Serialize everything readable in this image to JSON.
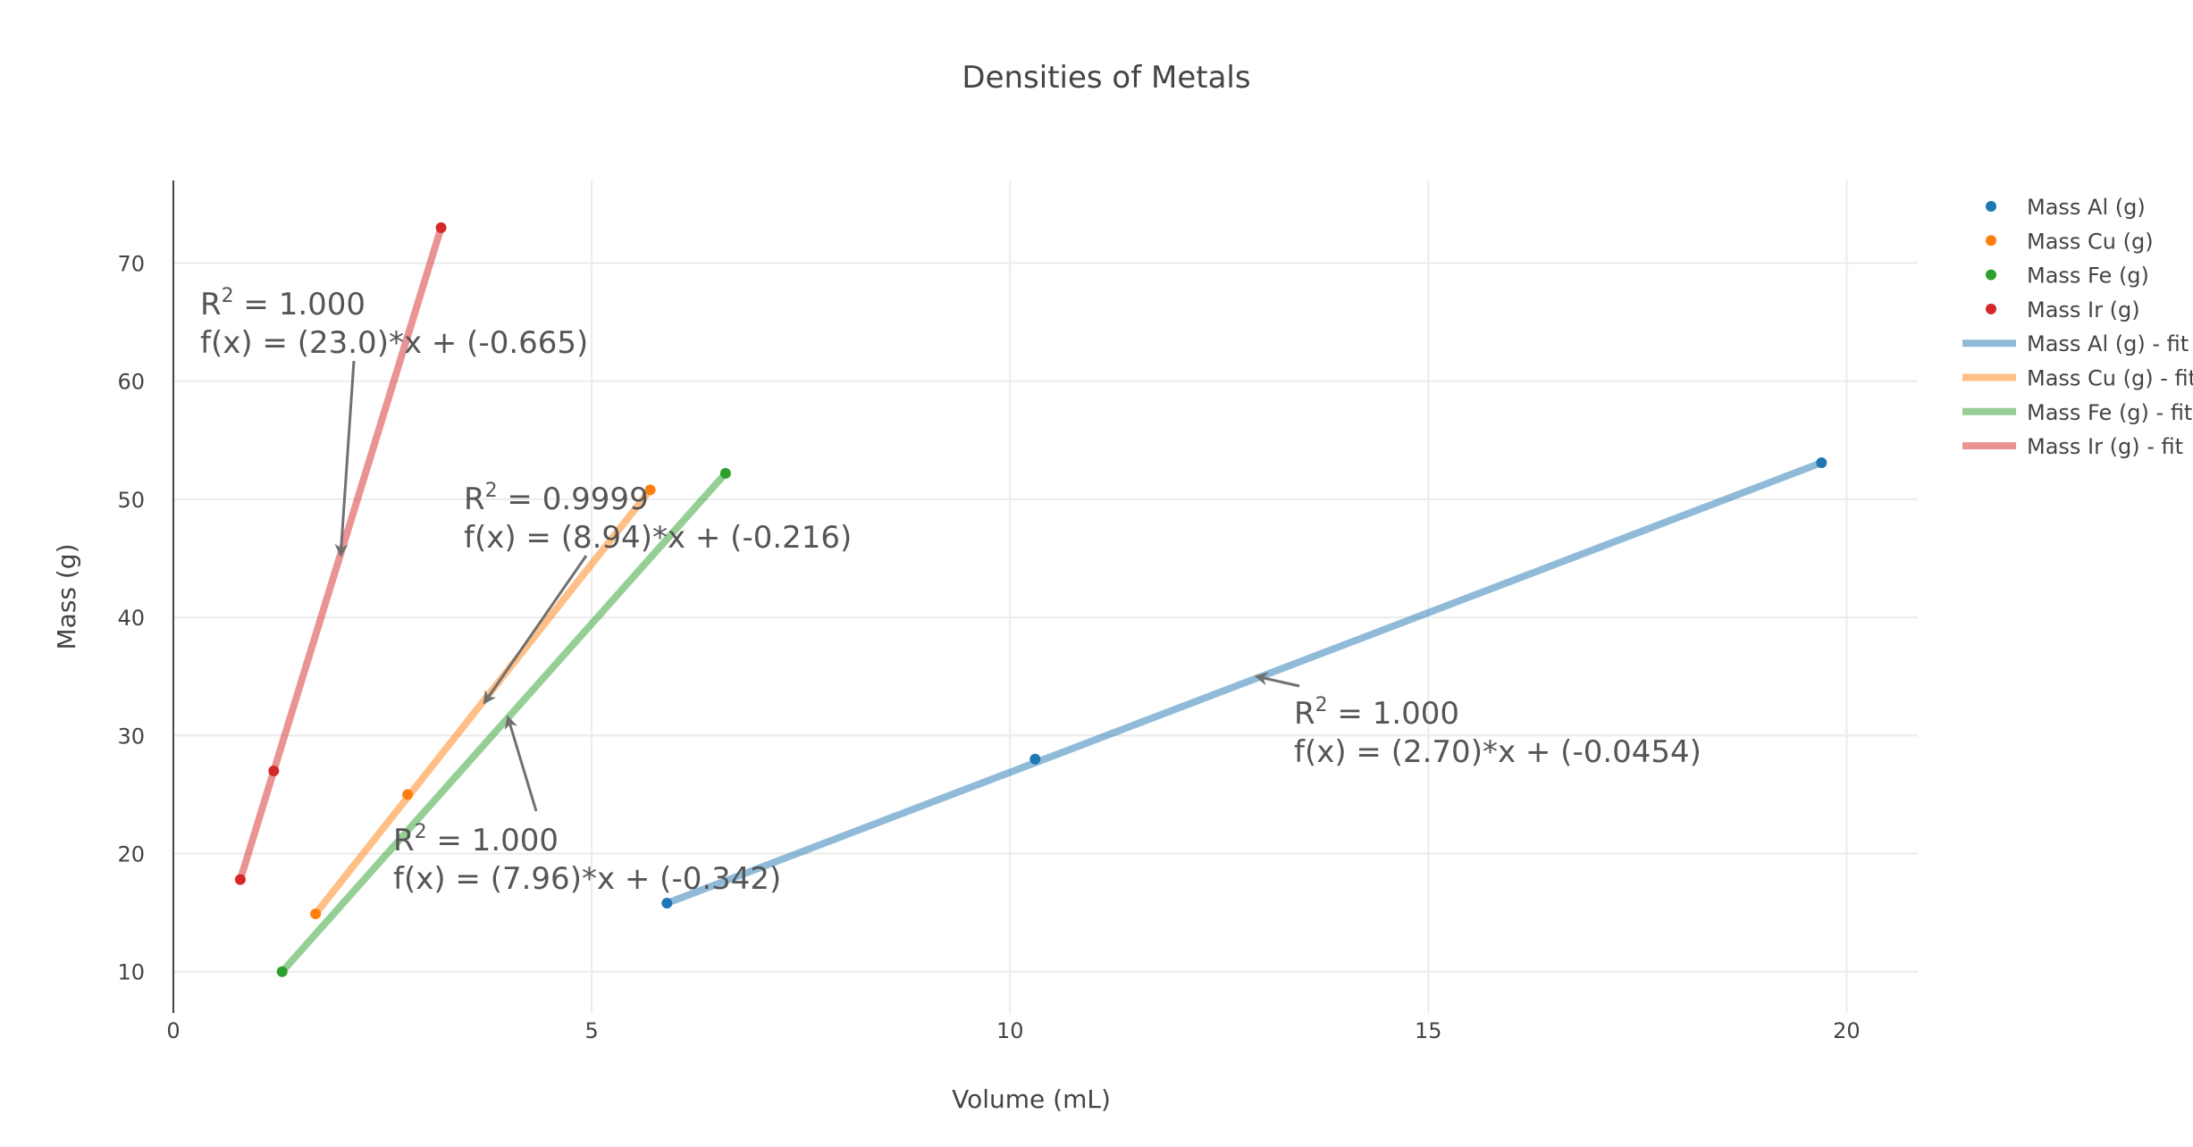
{
  "chart_data": {
    "type": "scatter",
    "title": "Densities of Metals",
    "xlabel": "Volume (mL)",
    "ylabel": "Mass (g)",
    "xlim": [
      0,
      20.85
    ],
    "ylim": [
      6.5,
      77
    ],
    "xticks": [
      0,
      5,
      10,
      15,
      20
    ],
    "yticks": [
      10,
      20,
      30,
      40,
      50,
      60,
      70
    ],
    "xtick_labels": [
      "0",
      "5",
      "10",
      "15",
      "20"
    ],
    "ytick_labels": [
      "10",
      "20",
      "30",
      "40",
      "50",
      "60",
      "70"
    ],
    "grid": true,
    "legend_position": "right",
    "colors": {
      "al": "#1f77b4",
      "cu": "#ff7f0e",
      "fe": "#2ca02c",
      "ir": "#d62728"
    },
    "series": [
      {
        "key": "al",
        "name": "Mass Al (g)",
        "mode": "markers",
        "x": [
          5.9,
          10.3,
          19.7
        ],
        "y": [
          15.8,
          28.0,
          53.1
        ]
      },
      {
        "key": "cu",
        "name": "Mass Cu (g)",
        "mode": "markers",
        "x": [
          1.7,
          2.8,
          5.7
        ],
        "y": [
          14.9,
          25.0,
          50.8
        ]
      },
      {
        "key": "fe",
        "name": "Mass Fe (g)",
        "mode": "markers",
        "x": [
          1.3,
          6.6
        ],
        "y": [
          10.0,
          52.2
        ]
      },
      {
        "key": "ir",
        "name": "Mass Ir (g)",
        "mode": "markers",
        "x": [
          0.8,
          1.2,
          3.2
        ],
        "y": [
          17.8,
          27.0,
          73.0
        ]
      }
    ],
    "fits": [
      {
        "key": "al",
        "name": "Mass Al (g)  - fit",
        "mode": "lines",
        "x": [
          5.9,
          19.7
        ],
        "y": [
          15.8,
          53.1
        ]
      },
      {
        "key": "cu",
        "name": "Mass Cu (g) - fit",
        "mode": "lines",
        "x": [
          1.7,
          5.7
        ],
        "y": [
          14.9,
          50.8
        ]
      },
      {
        "key": "fe",
        "name": "Mass Fe (g) - fit",
        "mode": "lines",
        "x": [
          1.3,
          6.6
        ],
        "y": [
          10.0,
          52.2
        ]
      },
      {
        "key": "ir",
        "name": "Mass Ir (g) - fit",
        "mode": "lines",
        "x": [
          0.8,
          3.2
        ],
        "y": [
          17.8,
          73.0
        ]
      }
    ],
    "annotations": [
      {
        "key": "ir",
        "r2_label": "R",
        "r2_sup": "2",
        "r2_value": " = 1.000",
        "equation": "f(x) = (23.0)*x + (-0.665)",
        "point_x": 2.0,
        "point_y": 45.3
      },
      {
        "key": "cu",
        "r2_label": "R",
        "r2_sup": "2",
        "r2_value": " = 0.9999",
        "equation": "f(x) = (8.94)*x + (-0.216)",
        "point_x": 3.72,
        "point_y": 32.8
      },
      {
        "key": "fe",
        "r2_label": "R",
        "r2_sup": "2",
        "r2_value": " = 1.000",
        "equation": "f(x) = (7.96)*x + (-0.342)",
        "point_x": 4.0,
        "point_y": 31.5
      },
      {
        "key": "al",
        "r2_label": "R",
        "r2_sup": "2",
        "r2_value": " = 1.000",
        "equation": "f(x) = (2.70)*x + (-0.0454)",
        "point_x": 12.95,
        "point_y": 35.0
      }
    ]
  }
}
